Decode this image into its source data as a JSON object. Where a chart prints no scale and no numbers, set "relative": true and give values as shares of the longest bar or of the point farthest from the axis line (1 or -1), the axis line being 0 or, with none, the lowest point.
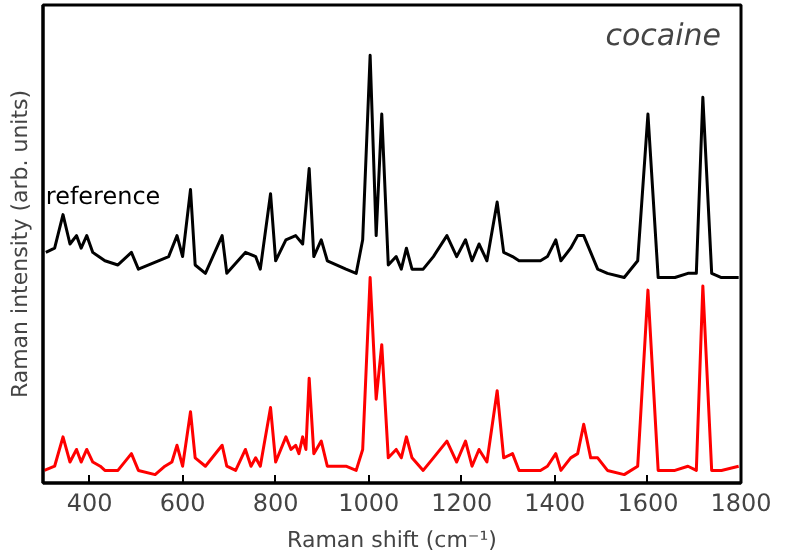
{
  "chart_data": {
    "type": "line",
    "relative": true,
    "xlabel": "Raman shift (cm⁻¹)",
    "ylabel": "Raman intensity (arb. units)",
    "annotations": [
      "cocaine"
    ],
    "xlim": [
      300,
      1800
    ],
    "xticks": [
      400,
      600,
      800,
      1000,
      1200,
      1400,
      1600,
      1800
    ],
    "grid": false,
    "marker": "none",
    "line_style": "solid",
    "series": [
      {
        "name": "reference",
        "color": "#000000",
        "x": [
          306,
          325,
          343,
          358,
          372,
          382,
          394,
          407,
          433,
          461,
          490,
          505,
          548,
          570,
          588,
          600,
          617,
          627,
          649,
          685,
          695,
          735,
          757,
          767,
          789,
          800,
          822,
          843,
          858,
          872,
          882,
          898,
          911,
          951,
          973,
          987,
          1003,
          1016,
          1028,
          1042,
          1059,
          1070,
          1081,
          1093,
          1117,
          1139,
          1168,
          1189,
          1208,
          1222,
          1237,
          1254,
          1276,
          1290,
          1309,
          1323,
          1369,
          1384,
          1402,
          1413,
          1434,
          1449,
          1462,
          1477,
          1492,
          1513,
          1549,
          1578,
          1600,
          1622,
          1658,
          1686,
          1704,
          1718,
          1737,
          1758,
          1795
        ],
        "values": [
          0.53,
          0.54,
          0.62,
          0.55,
          0.57,
          0.54,
          0.57,
          0.53,
          0.51,
          0.5,
          0.53,
          0.49,
          0.51,
          0.52,
          0.57,
          0.52,
          0.68,
          0.5,
          0.48,
          0.57,
          0.48,
          0.53,
          0.52,
          0.49,
          0.67,
          0.51,
          0.56,
          0.57,
          0.55,
          0.73,
          0.52,
          0.56,
          0.51,
          0.49,
          0.48,
          0.56,
          1.0,
          0.57,
          0.86,
          0.5,
          0.52,
          0.49,
          0.54,
          0.49,
          0.49,
          0.52,
          0.57,
          0.52,
          0.56,
          0.51,
          0.55,
          0.51,
          0.65,
          0.53,
          0.52,
          0.51,
          0.51,
          0.52,
          0.56,
          0.51,
          0.54,
          0.57,
          0.57,
          0.53,
          0.49,
          0.48,
          0.47,
          0.51,
          0.86,
          0.47,
          0.47,
          0.48,
          0.48,
          0.9,
          0.48,
          0.47,
          0.47
        ]
      },
      {
        "color": "#ff0000",
        "x": [
          303,
          325,
          343,
          358,
          372,
          382,
          394,
          407,
          423,
          433,
          461,
          490,
          505,
          541,
          562,
          577,
          588,
          600,
          617,
          627,
          649,
          685,
          695,
          714,
          735,
          747,
          757,
          767,
          789,
          800,
          822,
          833,
          843,
          850,
          858,
          865,
          872,
          882,
          898,
          911,
          930,
          951,
          973,
          987,
          1003,
          1016,
          1028,
          1042,
          1059,
          1070,
          1081,
          1093,
          1117,
          1139,
          1168,
          1189,
          1208,
          1222,
          1237,
          1254,
          1276,
          1290,
          1309,
          1323,
          1369,
          1384,
          1402,
          1413,
          1434,
          1449,
          1462,
          1477,
          1492,
          1513,
          1549,
          1578,
          1600,
          1622,
          1658,
          1686,
          1704,
          1718,
          1737,
          1758,
          1795
        ],
        "values": [
          0.01,
          0.02,
          0.09,
          0.03,
          0.06,
          0.03,
          0.06,
          0.03,
          0.02,
          0.01,
          0.01,
          0.05,
          0.01,
          0.0,
          0.02,
          0.03,
          0.07,
          0.02,
          0.15,
          0.04,
          0.02,
          0.07,
          0.02,
          0.01,
          0.06,
          0.02,
          0.04,
          0.02,
          0.16,
          0.03,
          0.09,
          0.06,
          0.07,
          0.05,
          0.09,
          0.06,
          0.23,
          0.05,
          0.08,
          0.02,
          0.02,
          0.02,
          0.01,
          0.06,
          0.47,
          0.18,
          0.31,
          0.04,
          0.06,
          0.04,
          0.09,
          0.04,
          0.01,
          0.04,
          0.08,
          0.03,
          0.08,
          0.02,
          0.06,
          0.03,
          0.2,
          0.04,
          0.05,
          0.01,
          0.01,
          0.02,
          0.05,
          0.01,
          0.04,
          0.05,
          0.12,
          0.04,
          0.04,
          0.01,
          0.0,
          0.02,
          0.44,
          0.01,
          0.01,
          0.02,
          0.01,
          0.45,
          0.01,
          0.01,
          0.02
        ]
      }
    ]
  }
}
